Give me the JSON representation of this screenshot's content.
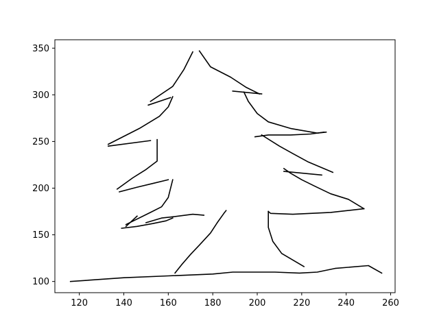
{
  "chart_data": {
    "type": "line",
    "title": "",
    "xlabel": "",
    "ylabel": "",
    "xlim": [
      109,
      262
    ],
    "ylim": [
      88,
      359
    ],
    "x_ticks": [
      120,
      140,
      160,
      180,
      200,
      220,
      240,
      260
    ],
    "y_ticks": [
      100,
      150,
      200,
      250,
      300,
      350
    ],
    "grid": false,
    "line_color": "#000000",
    "series": [
      {
        "points": [
          [
            116,
            100
          ],
          [
            140,
            104
          ],
          [
            160,
            106
          ],
          [
            180,
            108
          ],
          [
            189,
            110
          ],
          [
            200,
            110
          ],
          [
            208,
            110
          ],
          [
            219,
            109
          ],
          [
            227,
            110
          ],
          [
            235,
            114
          ],
          [
            250,
            117
          ],
          [
            256,
            109
          ]
        ]
      },
      {
        "points": [
          [
            163,
            109
          ],
          [
            166,
            118
          ],
          [
            170,
            129
          ],
          [
            174,
            139
          ],
          [
            179,
            152
          ],
          [
            182,
            163
          ],
          [
            185,
            173
          ],
          [
            186,
            176
          ]
        ]
      },
      {
        "points": [
          [
            150,
            163
          ],
          [
            157,
            168
          ],
          [
            161,
            169
          ],
          [
            171,
            172
          ],
          [
            176,
            171
          ]
        ]
      },
      {
        "points": [
          [
            139,
            157
          ],
          [
            146,
            159
          ],
          [
            153,
            162
          ],
          [
            159,
            165
          ],
          [
            162,
            168
          ]
        ]
      },
      {
        "points": [
          [
            141,
            159
          ],
          [
            146,
            170
          ]
        ]
      },
      {
        "points": [
          [
            141,
            161
          ],
          [
            152,
            174
          ],
          [
            157,
            180
          ],
          [
            160,
            190
          ],
          [
            162,
            209
          ]
        ]
      },
      {
        "points": [
          [
            138,
            196
          ],
          [
            146,
            201
          ],
          [
            153,
            205
          ],
          [
            160,
            209
          ]
        ]
      },
      {
        "points": [
          [
            137,
            199
          ],
          [
            144,
            211
          ],
          [
            150,
            220
          ],
          [
            155,
            229
          ],
          [
            155,
            252
          ]
        ]
      },
      {
        "points": [
          [
            133,
            245
          ],
          [
            152,
            251
          ]
        ]
      },
      {
        "points": [
          [
            133,
            247
          ],
          [
            147,
            264
          ],
          [
            156,
            277
          ],
          [
            160,
            287
          ],
          [
            162,
            298
          ]
        ]
      },
      {
        "points": [
          [
            151,
            289
          ],
          [
            161,
            297
          ]
        ]
      },
      {
        "points": [
          [
            152,
            293
          ],
          [
            162,
            309
          ],
          [
            167,
            327
          ],
          [
            171,
            346
          ]
        ]
      },
      {
        "points": [
          [
            174,
            347
          ],
          [
            179,
            330
          ],
          [
            188,
            319
          ],
          [
            195,
            308
          ],
          [
            201,
            301
          ]
        ]
      },
      {
        "points": [
          [
            189,
            304
          ],
          [
            202,
            301
          ]
        ]
      },
      {
        "points": [
          [
            194,
            303
          ],
          [
            196,
            293
          ],
          [
            200,
            280
          ],
          [
            205,
            271
          ],
          [
            215,
            264
          ],
          [
            227,
            259
          ],
          [
            231,
            260
          ]
        ]
      },
      {
        "points": [
          [
            199,
            255
          ],
          [
            205,
            257
          ],
          [
            215,
            257
          ],
          [
            224,
            258
          ],
          [
            230,
            260
          ]
        ]
      },
      {
        "points": [
          [
            202,
            257
          ],
          [
            210,
            245
          ],
          [
            216,
            237
          ],
          [
            223,
            228
          ],
          [
            234,
            217
          ]
        ]
      },
      {
        "points": [
          [
            212,
            221
          ],
          [
            215,
            216
          ],
          [
            220,
            209
          ],
          [
            226,
            202
          ],
          [
            233,
            194
          ],
          [
            241,
            188
          ],
          [
            248,
            178
          ]
        ]
      },
      {
        "points": [
          [
            212,
            218
          ],
          [
            229,
            214
          ]
        ]
      },
      {
        "points": [
          [
            205,
            175
          ],
          [
            206,
            173
          ],
          [
            216,
            172
          ],
          [
            233,
            174
          ],
          [
            248,
            178
          ]
        ]
      },
      {
        "points": [
          [
            205,
            175
          ],
          [
            205,
            158
          ],
          [
            207,
            143
          ],
          [
            211,
            130
          ],
          [
            221,
            116
          ]
        ]
      }
    ]
  }
}
